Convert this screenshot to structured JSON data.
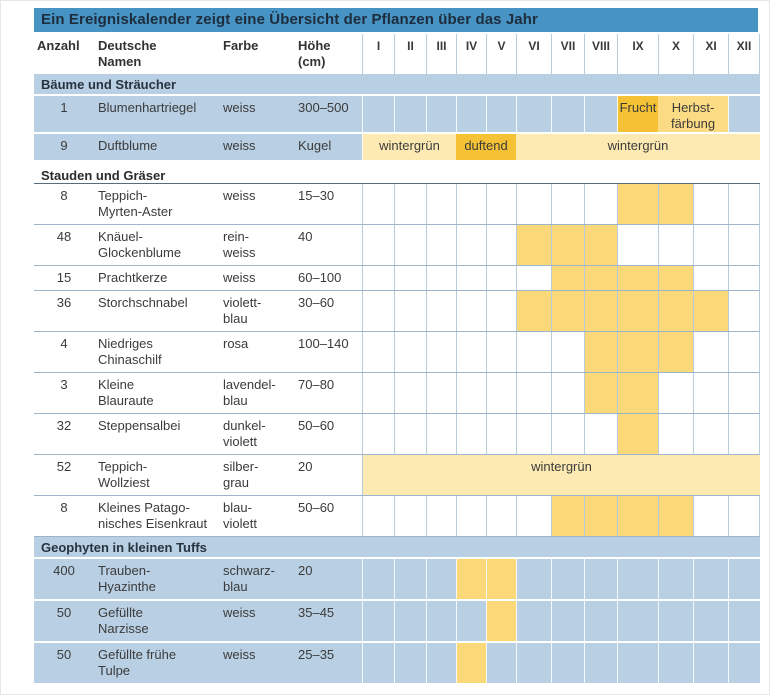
{
  "title": "Ein Ereigniskalender zeigt eine Übersicht der Pflanzen über das Jahr",
  "columns": {
    "anzahl": "Anzahl",
    "name": "Deutsche\nNamen",
    "farbe": "Farbe",
    "hoehe": "Höhe\n(cm)"
  },
  "months": [
    "I",
    "II",
    "III",
    "IV",
    "V",
    "VI",
    "VII",
    "VIII",
    "IX",
    "X",
    "XI",
    "XII"
  ],
  "colors": {
    "title_bar_blue": "#4793c4",
    "row_blue": "#b9cfe3",
    "bloom_yellow": "#fbd878",
    "autumn_yellow": "#fbdc85",
    "event_orange": "#f6c235",
    "winter_cream": "#fdeab3"
  },
  "sections": [
    {
      "title": "Bäume und Sträucher",
      "style": "blue",
      "rows": [
        {
          "anzahl": "1",
          "name": "Blumenhartriegel",
          "farbe": "weiss",
          "hoehe": "300–500",
          "spans": [
            {
              "from": 9,
              "to": 9,
              "type": "event",
              "label": "Frucht"
            },
            {
              "from": 10,
              "to": 11,
              "type": "autumn",
              "label": "Herbst-\nfärbung"
            }
          ]
        },
        {
          "anzahl": "9",
          "name": "Duftblume",
          "farbe": "weiss",
          "hoehe": "Kugel",
          "spans": [
            {
              "from": 1,
              "to": 3,
              "type": "winter",
              "label": "wintergrün"
            },
            {
              "from": 4,
              "to": 5,
              "type": "event",
              "label": "duftend"
            },
            {
              "from": 6,
              "to": 12,
              "type": "winter",
              "label": "wintergrün"
            }
          ]
        }
      ]
    },
    {
      "title": "Stauden und Gräser",
      "style": "white",
      "rows": [
        {
          "anzahl": "8",
          "name": "Teppich-\nMyrten-Aster",
          "farbe": "weiss",
          "hoehe": "15–30",
          "spans": [
            {
              "from": 9,
              "to": 10,
              "type": "bloom",
              "label": ""
            }
          ]
        },
        {
          "anzahl": "48",
          "name": "Knäuel-\nGlockenblume",
          "farbe": "rein-\nweiss",
          "hoehe": "40",
          "spans": [
            {
              "from": 6,
              "to": 8,
              "type": "bloom",
              "label": ""
            }
          ]
        },
        {
          "anzahl": "15",
          "name": "Prachtkerze",
          "farbe": "weiss",
          "hoehe": "60–100",
          "spans": [
            {
              "from": 7,
              "to": 10,
              "type": "bloom",
              "label": ""
            }
          ]
        },
        {
          "anzahl": "36",
          "name": "Storchschnabel",
          "farbe": "violett-\nblau",
          "hoehe": "30–60",
          "spans": [
            {
              "from": 6,
              "to": 11,
              "type": "bloom",
              "label": ""
            }
          ]
        },
        {
          "anzahl": "4",
          "name": "Niedriges\nChinaschilf",
          "farbe": "rosa",
          "hoehe": "100–140",
          "spans": [
            {
              "from": 8,
              "to": 10,
              "type": "bloom",
              "label": ""
            }
          ]
        },
        {
          "anzahl": "3",
          "name": "Kleine\nBlauraute",
          "farbe": "lavendel-\nblau",
          "hoehe": "70–80",
          "spans": [
            {
              "from": 8,
              "to": 9,
              "type": "bloom",
              "label": ""
            }
          ]
        },
        {
          "anzahl": "32",
          "name": "Steppensalbei",
          "farbe": "dunkel-\nviolett",
          "hoehe": "50–60",
          "spans": [
            {
              "from": 9,
              "to": 9,
              "type": "bloom",
              "label": ""
            }
          ]
        },
        {
          "anzahl": "52",
          "name": "Teppich-\nWollziest",
          "farbe": "silber-\ngrau",
          "hoehe": "20",
          "spans": [
            {
              "from": 1,
              "to": 12,
              "type": "winter",
              "label": "wintergrün"
            }
          ]
        },
        {
          "anzahl": "8",
          "name": "Kleines Patago-\nnisches Eisenkraut",
          "farbe": "blau-\nviolett",
          "hoehe": "50–60",
          "spans": [
            {
              "from": 7,
              "to": 10,
              "type": "bloom",
              "label": ""
            }
          ]
        }
      ]
    },
    {
      "title": "Geophyten in kleinen Tuffs",
      "style": "blue",
      "rows": [
        {
          "anzahl": "400",
          "name": "Trauben-\nHyazinthe",
          "farbe": "schwarz-\nblau",
          "hoehe": "20",
          "spans": [
            {
              "from": 4,
              "to": 5,
              "type": "bloom",
              "label": ""
            }
          ]
        },
        {
          "anzahl": "50",
          "name": "Gefüllte\nNarzisse",
          "farbe": "weiss",
          "hoehe": "35–45",
          "spans": [
            {
              "from": 5,
              "to": 5,
              "type": "bloom",
              "label": ""
            }
          ]
        },
        {
          "anzahl": "50",
          "name": "Gefüllte frühe\nTulpe",
          "farbe": "weiss",
          "hoehe": "25–35",
          "spans": [
            {
              "from": 4,
              "to": 4,
              "type": "bloom",
              "label": ""
            }
          ]
        }
      ]
    }
  ]
}
